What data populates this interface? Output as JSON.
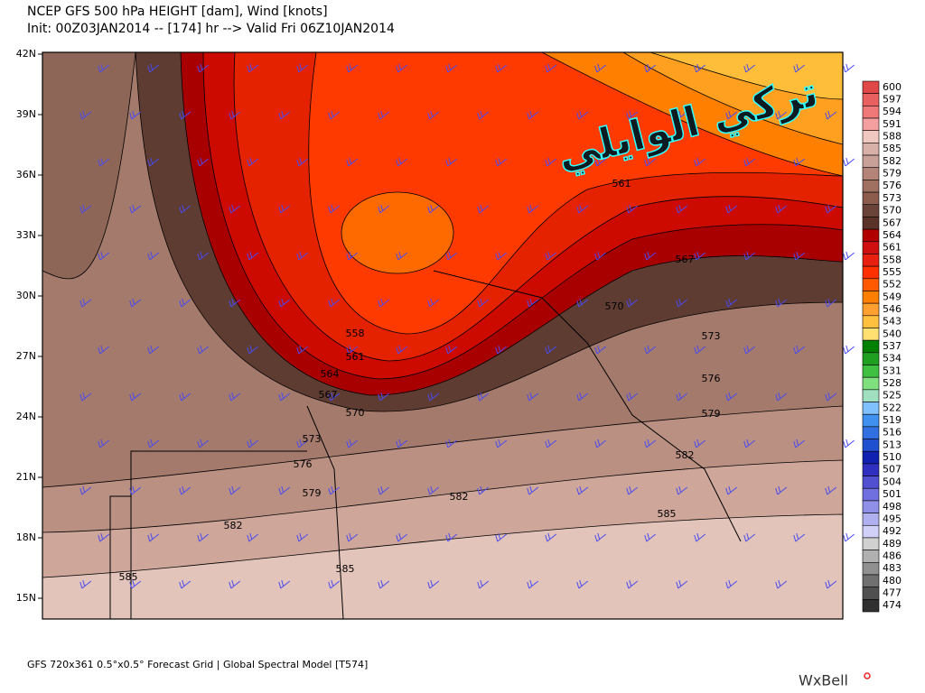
{
  "header": {
    "title": "NCEP GFS 500 hPa HEIGHT [dam], Wind [knots]",
    "subtitle": "Init: 00Z03JAN2014 -- [174] hr --> Valid Fri 06Z10JAN2014"
  },
  "map": {
    "lat_labels": [
      "42N",
      "39N",
      "36N",
      "33N",
      "30N",
      "27N",
      "24N",
      "21N",
      "18N",
      "15N"
    ],
    "contour_labels": [
      561,
      567,
      570,
      558,
      573,
      561,
      564,
      576,
      567,
      570,
      579,
      573,
      576,
      582,
      582,
      579,
      585,
      582,
      585,
      585
    ],
    "watermark": "تركي الوايلي"
  },
  "colorbar": {
    "labels": [
      600,
      597,
      594,
      591,
      588,
      585,
      582,
      579,
      576,
      573,
      570,
      567,
      564,
      561,
      558,
      555,
      552,
      549,
      546,
      543,
      540,
      537,
      534,
      531,
      528,
      525,
      522,
      519,
      516,
      513,
      510,
      507,
      504,
      501,
      498,
      495,
      492,
      489,
      486,
      483,
      480,
      477,
      474
    ]
  },
  "footer": {
    "grid_info": "GFS 720x361 0.5°x0.5° Forecast Grid | Global Spectral Model [T574]",
    "brand": "WxBell"
  }
}
